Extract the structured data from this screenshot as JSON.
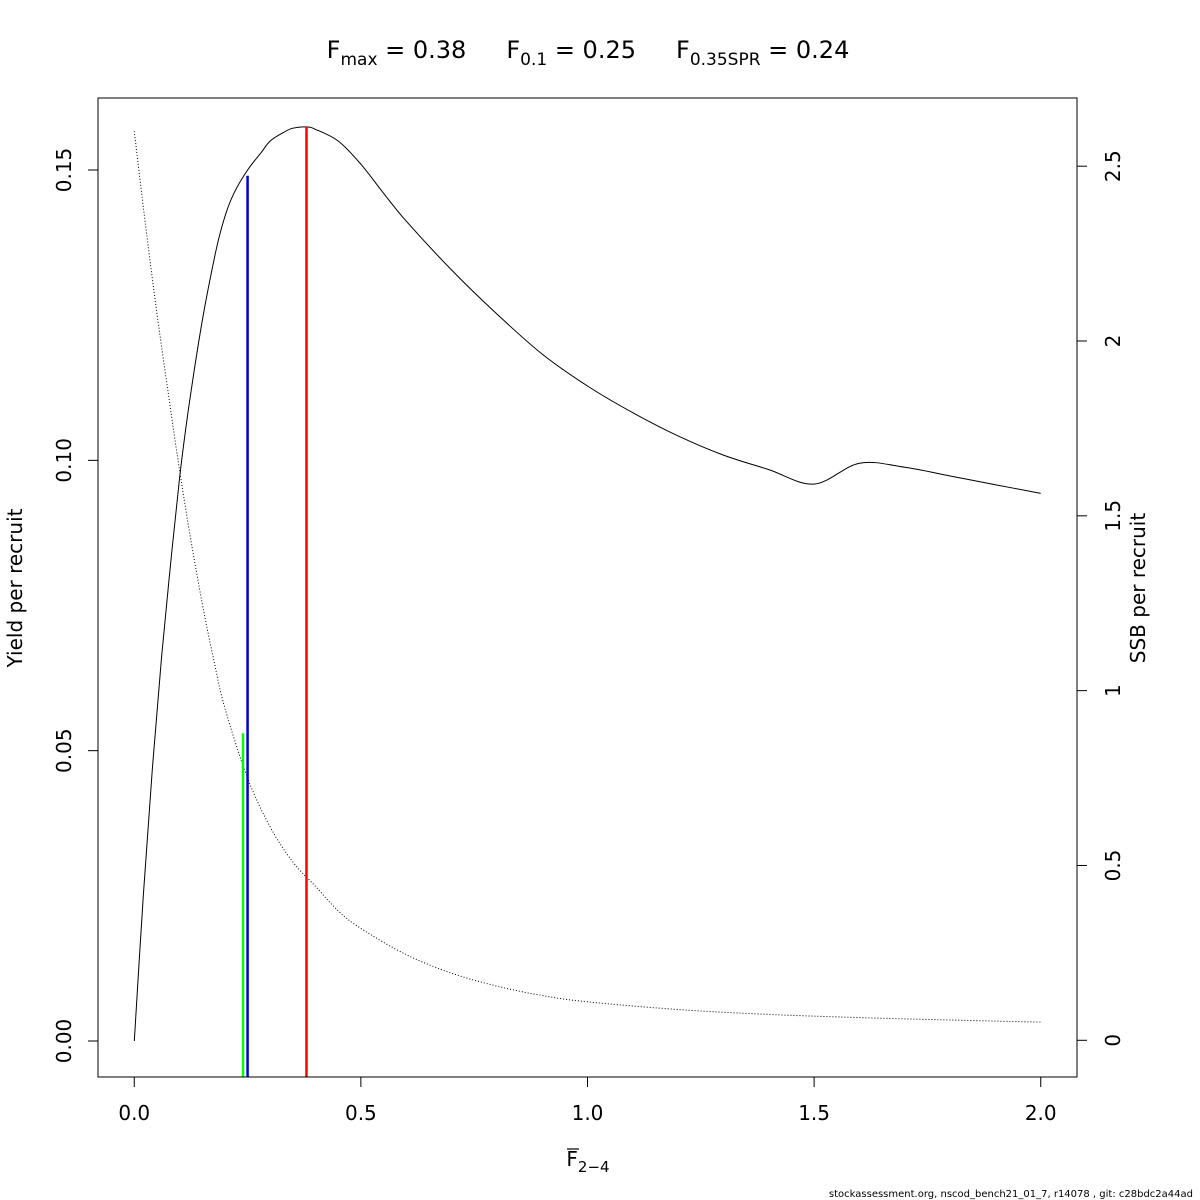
{
  "title": {
    "fmax": {
      "sym": "F",
      "sub": "max",
      "eq": " = 0.38"
    },
    "f01": {
      "sym": "F",
      "sub": "0.1",
      "eq": " = 0.25"
    },
    "fspr": {
      "sym": "F",
      "sub": "0.35SPR",
      "eq": " = 0.24"
    }
  },
  "footer": "stockassessment.org, nscod_bench21_01_7, r14078 , git: c28bdc2a44ad",
  "chart_data": {
    "type": "line",
    "xlabel": {
      "sym": "F",
      "sub": "2−4"
    },
    "ylabel_left": "Yield per recruit",
    "ylabel_right": "SSB per recruit",
    "xlim": [
      -0.08,
      2.08
    ],
    "ylim_left": [
      -0.0062,
      0.1624
    ],
    "ylim_right": [
      -0.105,
      2.695
    ],
    "x_ticks": [
      {
        "value": 0,
        "label": "0.0"
      },
      {
        "value": 0.5,
        "label": "0.5"
      },
      {
        "value": 1,
        "label": "1.0"
      },
      {
        "value": 1.5,
        "label": "1.5"
      },
      {
        "value": 2,
        "label": "2.0"
      }
    ],
    "y_ticks_left": [
      {
        "value": 0,
        "label": "0.00"
      },
      {
        "value": 0.05,
        "label": "0.05"
      },
      {
        "value": 0.1,
        "label": "0.10"
      },
      {
        "value": 0.15,
        "label": "0.15"
      }
    ],
    "y_ticks_right": [
      {
        "value": 0,
        "label": "0"
      },
      {
        "value": 0.5,
        "label": "0.5"
      },
      {
        "value": 1,
        "label": "1"
      },
      {
        "value": 1.5,
        "label": "1.5"
      },
      {
        "value": 2,
        "label": "2"
      },
      {
        "value": 2.5,
        "label": "2.5"
      }
    ],
    "series": [
      {
        "axis": "left",
        "style": "solid",
        "color": "#000000",
        "x": [
          0,
          0.02,
          0.04,
          0.06,
          0.08,
          0.1,
          0.12,
          0.15,
          0.18,
          0.2,
          0.22,
          0.25,
          0.28,
          0.3,
          0.33,
          0.35,
          0.38,
          0.4,
          0.45,
          0.5,
          0.55,
          0.6,
          0.7,
          0.8,
          0.9,
          1.0,
          1.1,
          1.2,
          1.3,
          1.4,
          1.5,
          1.6,
          1.7,
          1.8,
          1.9,
          2.0
        ],
        "values": [
          0,
          0.025,
          0.047,
          0.066,
          0.082,
          0.097,
          0.109,
          0.124,
          0.136,
          0.142,
          0.146,
          0.15,
          0.153,
          0.155,
          0.1565,
          0.1572,
          0.1574,
          0.157,
          0.155,
          0.151,
          0.146,
          0.1412,
          0.1328,
          0.1252,
          0.1183,
          0.1128,
          0.1082,
          0.1042,
          0.1009,
          0.0984,
          0.0959,
          0.0995,
          0.0988,
          0.0973,
          0.0958,
          0.0943
        ]
      },
      {
        "axis": "right",
        "style": "dotted",
        "color": "#000000",
        "x": [
          0,
          0.025,
          0.05,
          0.075,
          0.1,
          0.125,
          0.15,
          0.175,
          0.2,
          0.25,
          0.3,
          0.35,
          0.4,
          0.45,
          0.5,
          0.6,
          0.7,
          0.8,
          0.9,
          1.0,
          1.2,
          1.4,
          1.6,
          1.8,
          2.0
        ],
        "values": [
          2.6,
          2.33,
          2.08,
          1.85,
          1.63,
          1.43,
          1.25,
          1.09,
          0.95,
          0.75,
          0.61,
          0.51,
          0.44,
          0.37,
          0.32,
          0.245,
          0.192,
          0.155,
          0.128,
          0.11,
          0.088,
          0.074,
          0.065,
          0.058,
          0.052
        ]
      }
    ],
    "ref_lines": [
      {
        "name": "fmax",
        "x": 0.38,
        "y_top": 0.1574,
        "color": "#ff0000"
      },
      {
        "name": "f01",
        "x": 0.25,
        "y_top": 0.149,
        "color": "#0000cd"
      },
      {
        "name": "fspr",
        "x": 0.24,
        "y_top": 0.053,
        "color": "#00ff00"
      }
    ],
    "grid": false,
    "legend": "none"
  }
}
